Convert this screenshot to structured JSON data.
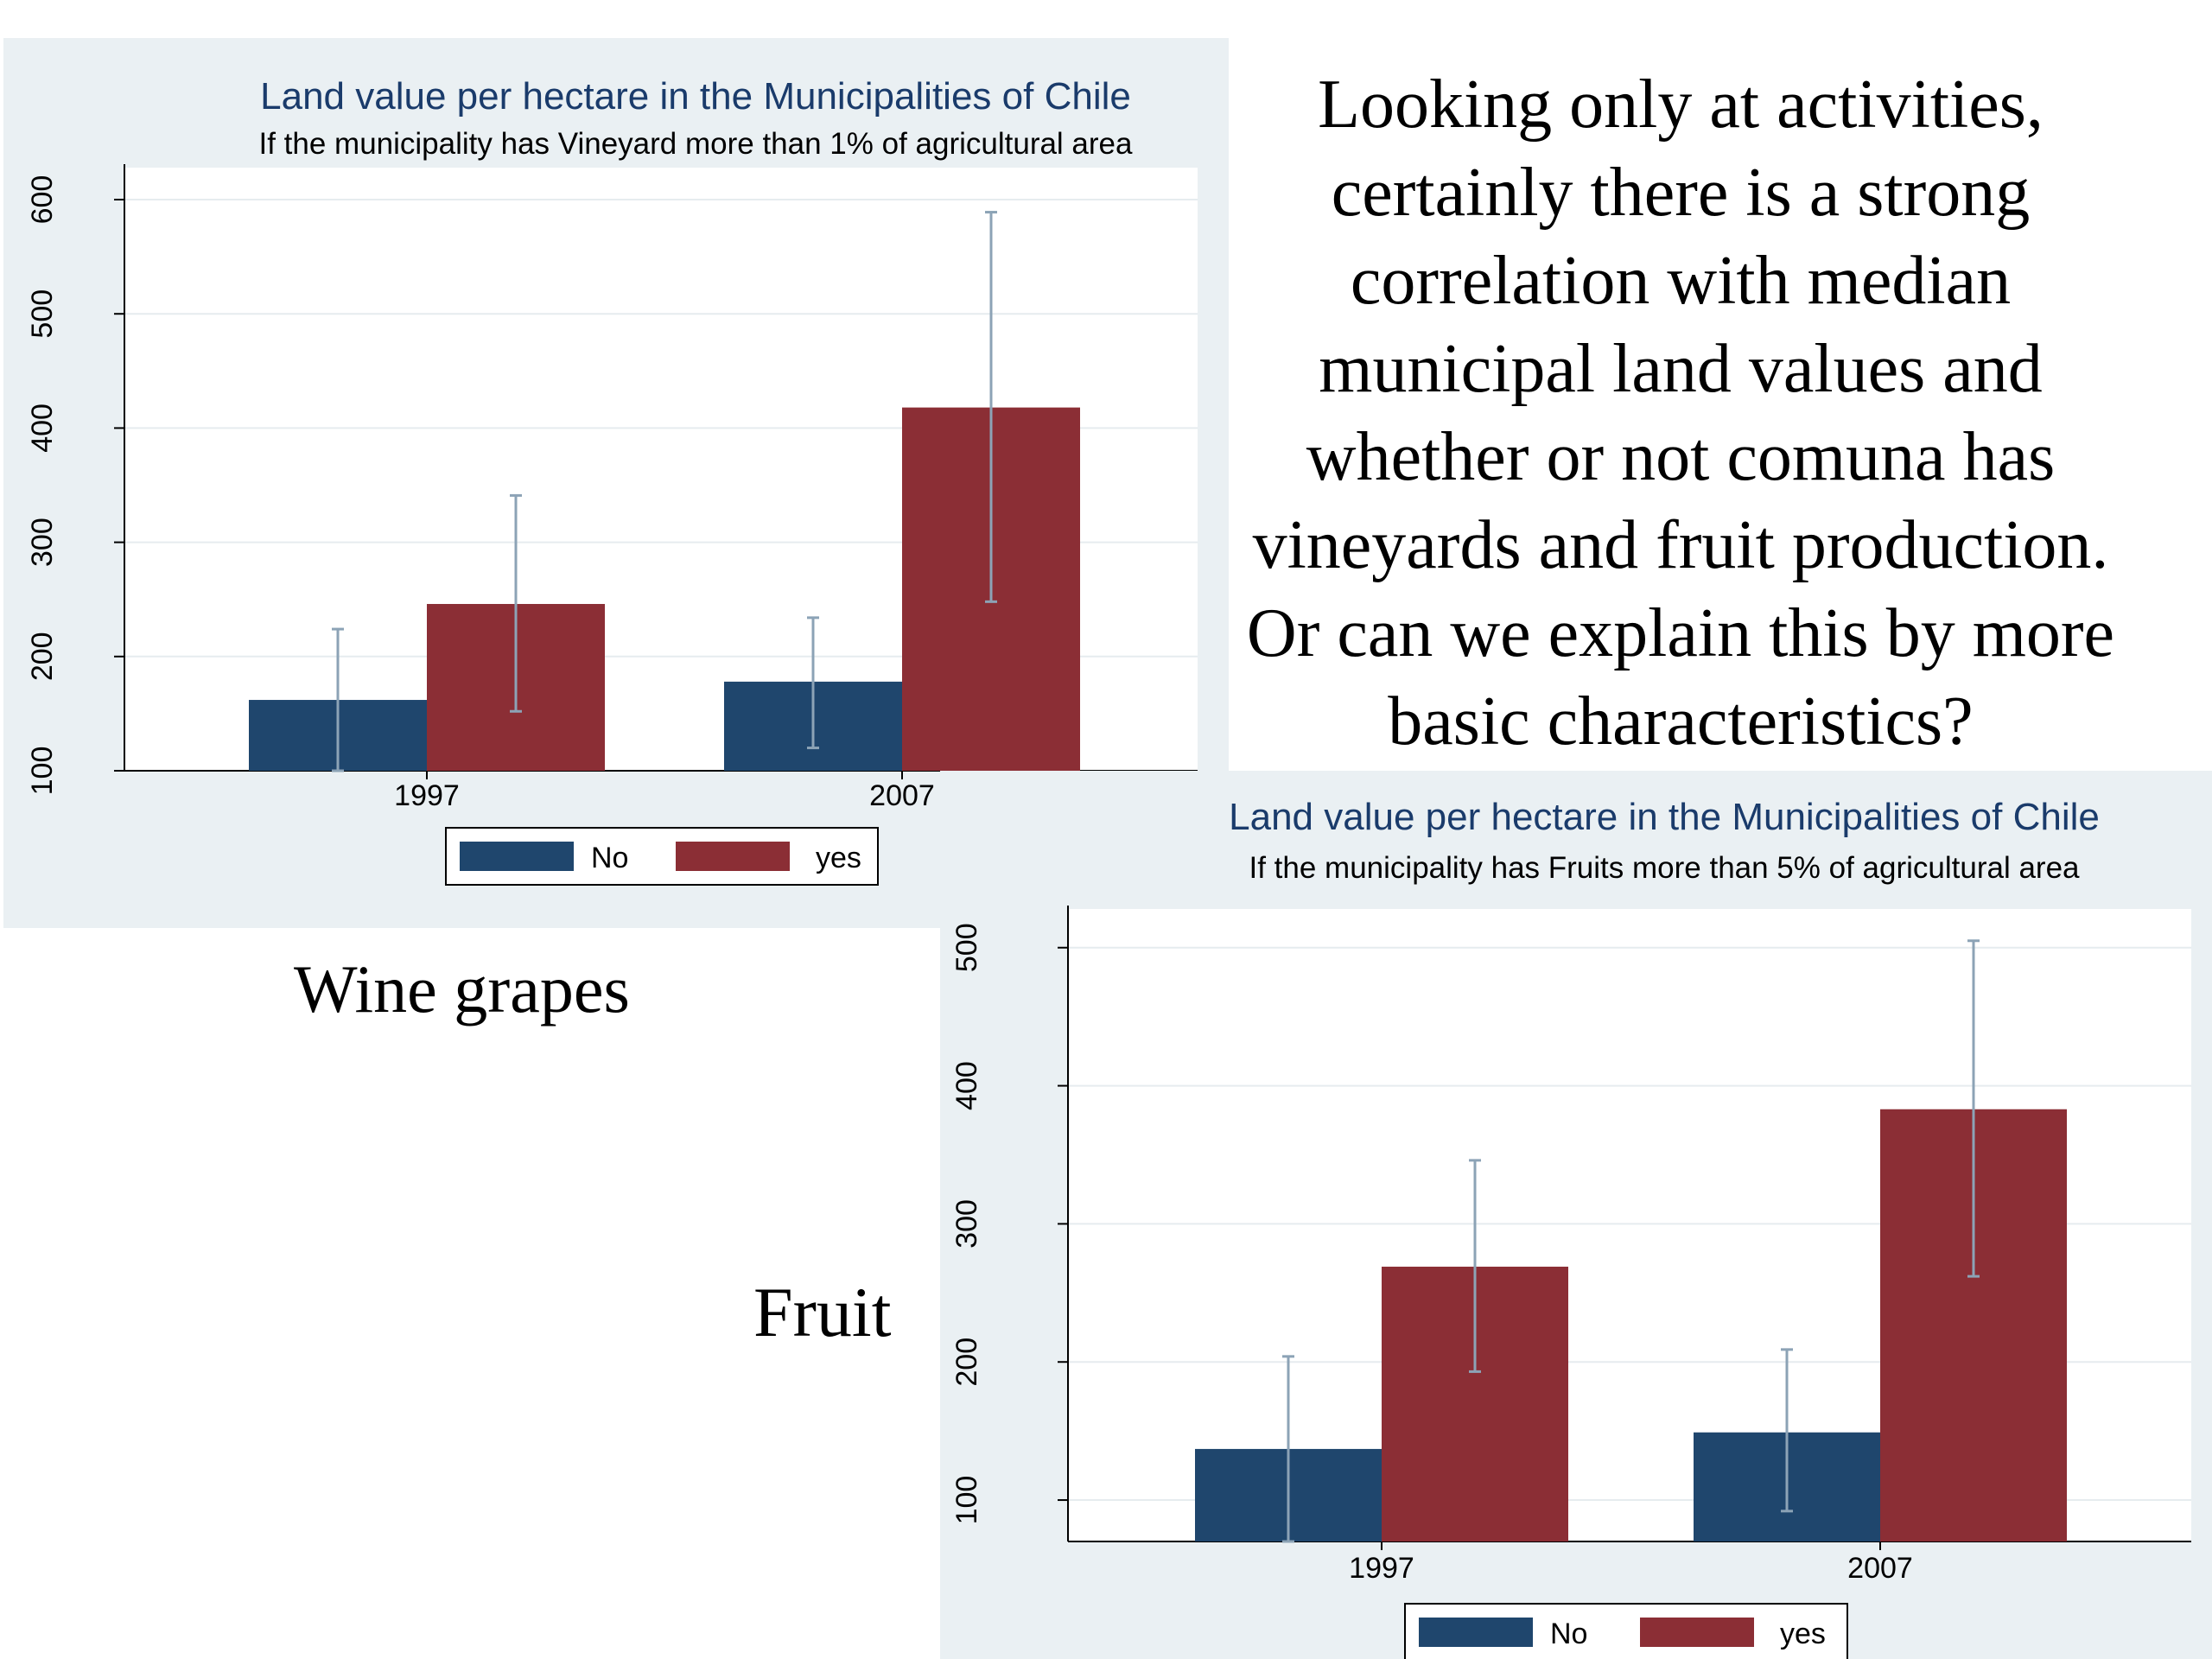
{
  "slide": {
    "body_text": "Looking only at activities, certainly there is a strong correlation with median municipal land values and whether or not comuna has vineyards and fruit production. Or can we explain this by more basic characteristics?",
    "wine_label": "Wine grapes",
    "fruit_label": "Fruit"
  },
  "colors": {
    "no": "#1f466d",
    "yes": "#8b2e35",
    "error_bar": "#8ca3b6",
    "title": "#1a3b6b",
    "panel": "#eaf0f3",
    "plot": "#ffffff"
  },
  "chart_data": [
    {
      "type": "bar",
      "title": "Land value per hectare in the Municipalities of Chile",
      "subtitle": "If the municipality has Vineyard more than 1% of agricultural area",
      "categories": [
        "1997",
        "2007"
      ],
      "series": [
        {
          "name": "No",
          "values": [
            162,
            178
          ],
          "error_low": [
            100,
            120
          ],
          "error_high": [
            224,
            234
          ]
        },
        {
          "name": "yes",
          "values": [
            246,
            418
          ],
          "error_low": [
            152,
            248
          ],
          "error_high": [
            341,
            589
          ]
        }
      ],
      "yticks": [
        100,
        200,
        300,
        400,
        500,
        600
      ],
      "ylim": [
        100,
        628
      ],
      "grid": true,
      "legend": "bottom"
    },
    {
      "type": "bar",
      "title": "Land value per hectare in the Municipalities of Chile",
      "subtitle": "If the municipality has Fruits more than 5% of agricultural area",
      "categories": [
        "1997",
        "2007"
      ],
      "series": [
        {
          "name": "No",
          "values": [
            137,
            149
          ],
          "error_low": [
            70,
            92
          ],
          "error_high": [
            204,
            209
          ]
        },
        {
          "name": "yes",
          "values": [
            269,
            383
          ],
          "error_low": [
            193,
            262
          ],
          "error_high": [
            346,
            505
          ]
        }
      ],
      "yticks": [
        100,
        200,
        300,
        400,
        500
      ],
      "ylim": [
        70,
        528
      ],
      "grid": true,
      "legend": "bottom"
    }
  ]
}
